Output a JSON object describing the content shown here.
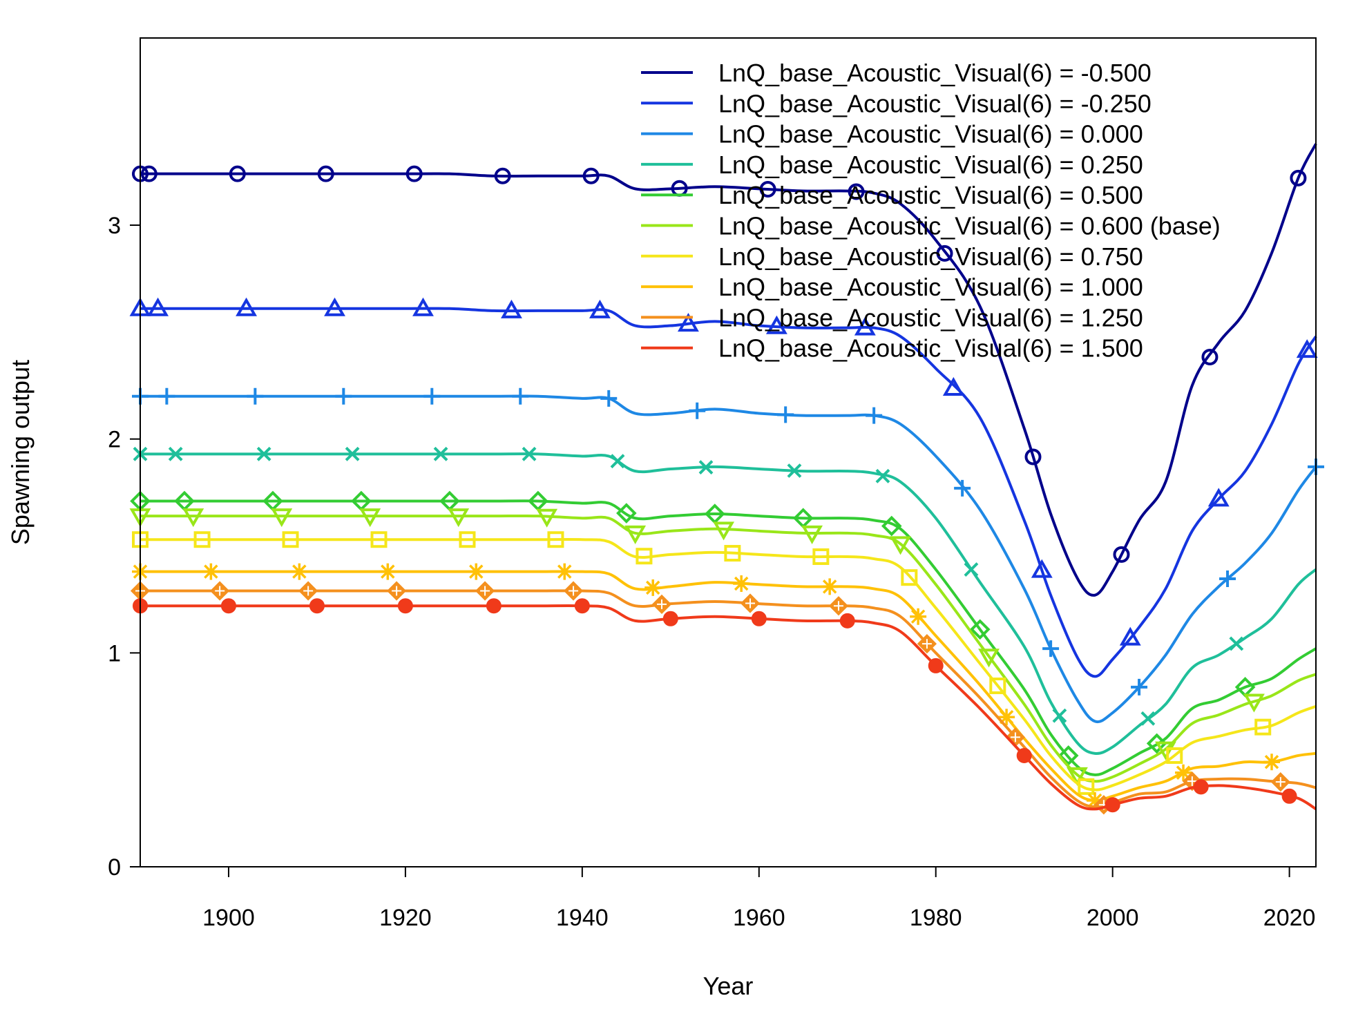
{
  "chart_data": {
    "type": "line",
    "title": "",
    "xlabel": "Year",
    "ylabel": "Spawning output",
    "xlim": [
      1890,
      2023
    ],
    "ylim": [
      0,
      3.8
    ],
    "x_ticks": [
      1900,
      1920,
      1940,
      1960,
      1980,
      2000,
      2020
    ],
    "x_tick_labels": [
      "1900",
      "1920",
      "1940",
      "1960",
      "1980",
      "2000",
      "2020"
    ],
    "y_ticks": [
      0,
      1,
      2,
      3
    ],
    "y_tick_labels": [
      "0",
      "1",
      "2",
      "3"
    ],
    "grid": false,
    "legend_position": "top-right",
    "x": [
      1890,
      1895,
      1900,
      1905,
      1910,
      1915,
      1920,
      1925,
      1930,
      1935,
      1940,
      1943,
      1946,
      1950,
      1955,
      1960,
      1965,
      1970,
      1973,
      1976,
      1980,
      1985,
      1990,
      1993,
      1996,
      1998,
      2000,
      2003,
      2006,
      2009,
      2012,
      2015,
      2018,
      2021,
      2023
    ],
    "series": [
      {
        "name": "LnQ_base_Acoustic_Visual(6) = -0.500",
        "color": "#00008B",
        "marker": "circle",
        "values": [
          3.24,
          3.24,
          3.24,
          3.24,
          3.24,
          3.24,
          3.24,
          3.24,
          3.23,
          3.23,
          3.23,
          3.23,
          3.17,
          3.17,
          3.18,
          3.17,
          3.16,
          3.16,
          3.15,
          3.1,
          2.93,
          2.62,
          2.05,
          1.65,
          1.35,
          1.27,
          1.38,
          1.62,
          1.8,
          2.25,
          2.45,
          2.6,
          2.87,
          3.22,
          3.38
        ]
      },
      {
        "name": "LnQ_base_Acoustic_Visual(6) = -0.250",
        "color": "#1535E0",
        "marker": "triangle",
        "values": [
          2.61,
          2.61,
          2.61,
          2.61,
          2.61,
          2.61,
          2.61,
          2.61,
          2.6,
          2.6,
          2.6,
          2.6,
          2.53,
          2.53,
          2.55,
          2.53,
          2.52,
          2.52,
          2.52,
          2.48,
          2.33,
          2.1,
          1.62,
          1.27,
          0.98,
          0.89,
          0.97,
          1.12,
          1.3,
          1.57,
          1.72,
          1.85,
          2.07,
          2.35,
          2.48
        ]
      },
      {
        "name": "LnQ_base_Acoustic_Visual(6) = 0.000",
        "color": "#1E88E5",
        "marker": "plus",
        "values": [
          2.2,
          2.2,
          2.2,
          2.2,
          2.2,
          2.2,
          2.2,
          2.2,
          2.2,
          2.2,
          2.19,
          2.19,
          2.12,
          2.12,
          2.14,
          2.12,
          2.11,
          2.11,
          2.11,
          2.07,
          1.92,
          1.67,
          1.3,
          1.02,
          0.78,
          0.68,
          0.72,
          0.84,
          0.99,
          1.18,
          1.31,
          1.42,
          1.56,
          1.76,
          1.87
        ]
      },
      {
        "name": "LnQ_base_Acoustic_Visual(6) = 0.250",
        "color": "#1FBF9A",
        "marker": "x",
        "values": [
          1.93,
          1.93,
          1.93,
          1.93,
          1.93,
          1.93,
          1.93,
          1.93,
          1.93,
          1.93,
          1.92,
          1.92,
          1.85,
          1.86,
          1.87,
          1.86,
          1.85,
          1.85,
          1.84,
          1.8,
          1.63,
          1.33,
          1.03,
          0.77,
          0.58,
          0.53,
          0.56,
          0.66,
          0.76,
          0.93,
          0.99,
          1.07,
          1.16,
          1.32,
          1.39
        ]
      },
      {
        "name": "LnQ_base_Acoustic_Visual(6) = 0.500",
        "color": "#33CC33",
        "marker": "diamond",
        "values": [
          1.71,
          1.71,
          1.71,
          1.71,
          1.71,
          1.71,
          1.71,
          1.71,
          1.71,
          1.71,
          1.7,
          1.7,
          1.63,
          1.64,
          1.65,
          1.64,
          1.63,
          1.63,
          1.62,
          1.58,
          1.39,
          1.11,
          0.83,
          0.62,
          0.47,
          0.43,
          0.46,
          0.53,
          0.6,
          0.74,
          0.78,
          0.84,
          0.88,
          0.97,
          1.02
        ]
      },
      {
        "name": "LnQ_base_Acoustic_Visual(6) = 0.600 (base)",
        "color": "#99E619",
        "marker": "triangle-down",
        "values": [
          1.64,
          1.64,
          1.64,
          1.64,
          1.64,
          1.64,
          1.64,
          1.64,
          1.64,
          1.64,
          1.63,
          1.63,
          1.56,
          1.57,
          1.58,
          1.57,
          1.56,
          1.56,
          1.55,
          1.51,
          1.32,
          1.04,
          0.76,
          0.57,
          0.43,
          0.4,
          0.42,
          0.48,
          0.55,
          0.67,
          0.71,
          0.76,
          0.8,
          0.87,
          0.9
        ]
      },
      {
        "name": "LnQ_base_Acoustic_Visual(6) = 0.750",
        "color": "#F5E61A",
        "marker": "square",
        "values": [
          1.53,
          1.53,
          1.53,
          1.53,
          1.53,
          1.53,
          1.53,
          1.53,
          1.53,
          1.53,
          1.53,
          1.52,
          1.45,
          1.46,
          1.47,
          1.46,
          1.45,
          1.45,
          1.44,
          1.4,
          1.21,
          0.95,
          0.69,
          0.52,
          0.39,
          0.36,
          0.38,
          0.43,
          0.49,
          0.58,
          0.61,
          0.64,
          0.66,
          0.72,
          0.75
        ]
      },
      {
        "name": "LnQ_base_Acoustic_Visual(6) = 1.000",
        "color": "#FFC107",
        "marker": "asterisk",
        "values": [
          1.38,
          1.38,
          1.38,
          1.38,
          1.38,
          1.38,
          1.38,
          1.38,
          1.38,
          1.38,
          1.38,
          1.37,
          1.3,
          1.31,
          1.33,
          1.32,
          1.31,
          1.31,
          1.3,
          1.26,
          1.08,
          0.85,
          0.6,
          0.46,
          0.34,
          0.31,
          0.33,
          0.37,
          0.4,
          0.46,
          0.47,
          0.49,
          0.49,
          0.52,
          0.53
        ]
      },
      {
        "name": "LnQ_base_Acoustic_Visual(6) = 1.250",
        "color": "#F4901E",
        "marker": "diamond-plus",
        "values": [
          1.29,
          1.29,
          1.29,
          1.29,
          1.29,
          1.29,
          1.29,
          1.29,
          1.29,
          1.29,
          1.29,
          1.28,
          1.22,
          1.23,
          1.24,
          1.23,
          1.22,
          1.22,
          1.21,
          1.17,
          1.0,
          0.79,
          0.56,
          0.42,
          0.31,
          0.28,
          0.3,
          0.34,
          0.35,
          0.4,
          0.41,
          0.41,
          0.4,
          0.39,
          0.37
        ]
      },
      {
        "name": "LnQ_base_Acoustic_Visual(6) = 1.500",
        "color": "#F03A1A",
        "marker": "circle-filled",
        "values": [
          1.22,
          1.22,
          1.22,
          1.22,
          1.22,
          1.22,
          1.22,
          1.22,
          1.22,
          1.22,
          1.22,
          1.21,
          1.15,
          1.16,
          1.17,
          1.16,
          1.15,
          1.15,
          1.14,
          1.1,
          0.94,
          0.74,
          0.52,
          0.39,
          0.29,
          0.27,
          0.29,
          0.32,
          0.33,
          0.37,
          0.38,
          0.37,
          0.35,
          0.32,
          0.27
        ]
      }
    ]
  }
}
